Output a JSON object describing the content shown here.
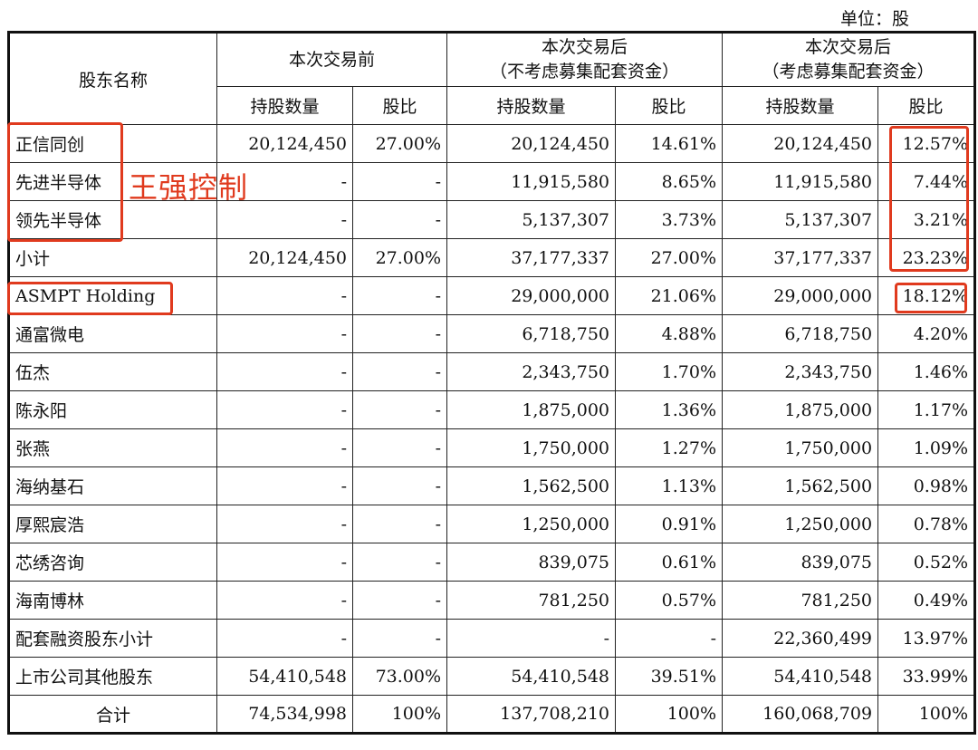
{
  "unit_label": "单位：股",
  "header": {
    "name_col": "股东名称",
    "group1": "本次交易前",
    "group2_line1": "本次交易后",
    "group2_line2": "（不考虑募集配套资金）",
    "group3_line1": "本次交易后",
    "group3_line2": "（考虑募集配套资金）",
    "shares": "持股数量",
    "ratio": "股比"
  },
  "rows": [
    {
      "name": "正信同创",
      "b_shares": "20,124,450",
      "b_ratio": "27.00%",
      "a1_shares": "20,124,450",
      "a1_ratio": "14.61%",
      "a2_shares": "20,124,450",
      "a2_ratio": "12.57%"
    },
    {
      "name": "先进半导体",
      "b_shares": "-",
      "b_ratio": "-",
      "a1_shares": "11,915,580",
      "a1_ratio": "8.65%",
      "a2_shares": "11,915,580",
      "a2_ratio": "7.44%"
    },
    {
      "name": "领先半导体",
      "b_shares": "-",
      "b_ratio": "-",
      "a1_shares": "5,137,307",
      "a1_ratio": "3.73%",
      "a2_shares": "5,137,307",
      "a2_ratio": "3.21%"
    },
    {
      "name": "小计",
      "b_shares": "20,124,450",
      "b_ratio": "27.00%",
      "a1_shares": "37,177,337",
      "a1_ratio": "27.00%",
      "a2_shares": "37,177,337",
      "a2_ratio": "23.23%"
    },
    {
      "name": "ASMPT Holding",
      "b_shares": "-",
      "b_ratio": "-",
      "a1_shares": "29,000,000",
      "a1_ratio": "21.06%",
      "a2_shares": "29,000,000",
      "a2_ratio": "18.12%"
    },
    {
      "name": "通富微电",
      "b_shares": "-",
      "b_ratio": "-",
      "a1_shares": "6,718,750",
      "a1_ratio": "4.88%",
      "a2_shares": "6,718,750",
      "a2_ratio": "4.20%"
    },
    {
      "name": "伍杰",
      "b_shares": "-",
      "b_ratio": "-",
      "a1_shares": "2,343,750",
      "a1_ratio": "1.70%",
      "a2_shares": "2,343,750",
      "a2_ratio": "1.46%"
    },
    {
      "name": "陈永阳",
      "b_shares": "-",
      "b_ratio": "-",
      "a1_shares": "1,875,000",
      "a1_ratio": "1.36%",
      "a2_shares": "1,875,000",
      "a2_ratio": "1.17%"
    },
    {
      "name": "张燕",
      "b_shares": "-",
      "b_ratio": "-",
      "a1_shares": "1,750,000",
      "a1_ratio": "1.27%",
      "a2_shares": "1,750,000",
      "a2_ratio": "1.09%"
    },
    {
      "name": "海纳基石",
      "b_shares": "-",
      "b_ratio": "-",
      "a1_shares": "1,562,500",
      "a1_ratio": "1.13%",
      "a2_shares": "1,562,500",
      "a2_ratio": "0.98%"
    },
    {
      "name": "厚熙宸浩",
      "b_shares": "-",
      "b_ratio": "-",
      "a1_shares": "1,250,000",
      "a1_ratio": "0.91%",
      "a2_shares": "1,250,000",
      "a2_ratio": "0.78%"
    },
    {
      "name": "芯绣咨询",
      "b_shares": "-",
      "b_ratio": "-",
      "a1_shares": "839,075",
      "a1_ratio": "0.61%",
      "a2_shares": "839,075",
      "a2_ratio": "0.52%"
    },
    {
      "name": "海南博林",
      "b_shares": "-",
      "b_ratio": "-",
      "a1_shares": "781,250",
      "a1_ratio": "0.57%",
      "a2_shares": "781,250",
      "a2_ratio": "0.49%"
    },
    {
      "name": "配套融资股东小计",
      "b_shares": "-",
      "b_ratio": "-",
      "a1_shares": "-",
      "a1_ratio": "-",
      "a2_shares": "22,360,499",
      "a2_ratio": "13.97%"
    },
    {
      "name": "上市公司其他股东",
      "b_shares": "54,410,548",
      "b_ratio": "73.00%",
      "a1_shares": "54,410,548",
      "a1_ratio": "39.51%",
      "a2_shares": "54,410,548",
      "a2_ratio": "33.99%"
    },
    {
      "name": "合计",
      "b_shares": "74,534,998",
      "b_ratio": "100%",
      "a1_shares": "137,708,210",
      "a1_ratio": "100%",
      "a2_shares": "160,068,709",
      "a2_ratio": "100%"
    }
  ],
  "annotation": "王强控制",
  "highlight_color": "#e03a1e"
}
